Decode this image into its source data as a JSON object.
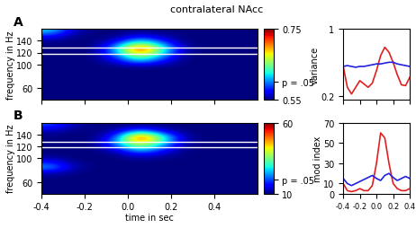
{
  "title": "contralateral NAcc",
  "chart_data": [
    {
      "type": "heatmap",
      "annotation": "A",
      "x_label": "time in sec",
      "y_label": "frequency in Hz",
      "x_edges": [
        -0.4,
        -0.3,
        -0.2,
        -0.1,
        0.0,
        0.1,
        0.2,
        0.3,
        0.4,
        0.5,
        0.6
      ],
      "y_edges": [
        40,
        50,
        60,
        70,
        80,
        90,
        100,
        110,
        120,
        130,
        140,
        150,
        160
      ],
      "cells": [
        [
          0.55,
          0.55,
          0.55,
          0.55,
          0.55,
          0.55,
          0.55,
          0.55,
          0.55,
          0.55
        ],
        [
          0.55,
          0.55,
          0.55,
          0.55,
          0.55,
          0.55,
          0.55,
          0.55,
          0.55,
          0.55
        ],
        [
          0.55,
          0.55,
          0.55,
          0.55,
          0.55,
          0.55,
          0.55,
          0.55,
          0.55,
          0.55
        ],
        [
          0.55,
          0.55,
          0.55,
          0.55,
          0.55,
          0.55,
          0.55,
          0.55,
          0.55,
          0.55
        ],
        [
          0.55,
          0.55,
          0.55,
          0.55,
          0.55,
          0.55,
          0.55,
          0.55,
          0.55,
          0.55
        ],
        [
          0.55,
          0.55,
          0.55,
          0.55,
          0.55,
          0.55,
          0.55,
          0.55,
          0.55,
          0.55
        ],
        [
          0.55,
          0.55,
          0.55,
          0.57,
          0.62,
          0.58,
          0.55,
          0.55,
          0.55,
          0.55
        ],
        [
          0.55,
          0.55,
          0.55,
          0.6,
          0.68,
          0.62,
          0.55,
          0.55,
          0.55,
          0.55
        ],
        [
          0.55,
          0.55,
          0.55,
          0.62,
          0.75,
          0.65,
          0.56,
          0.55,
          0.55,
          0.55
        ],
        [
          0.55,
          0.55,
          0.55,
          0.58,
          0.65,
          0.6,
          0.55,
          0.55,
          0.55,
          0.55
        ],
        [
          0.57,
          0.55,
          0.55,
          0.55,
          0.58,
          0.56,
          0.55,
          0.55,
          0.55,
          0.55
        ],
        [
          0.62,
          0.56,
          0.55,
          0.55,
          0.55,
          0.55,
          0.55,
          0.55,
          0.55,
          0.55
        ]
      ],
      "band": [
        118,
        128
      ],
      "xlim": [
        -0.4,
        0.6
      ],
      "xticks": [
        -0.4,
        -0.2,
        0.0,
        0.2,
        0.4
      ],
      "ylim": [
        40,
        160
      ],
      "yticks": [
        60,
        100,
        120,
        140
      ],
      "color_range": [
        0.55,
        0.75
      ],
      "color_ticks": [
        0.55,
        {
          "value": 0.6,
          "label": "p = .05"
        },
        0.75
      ],
      "tick_labels": "y"
    },
    {
      "type": "heatmap",
      "annotation": "B",
      "x_label": "time in sec",
      "y_label": "frequency in Hz",
      "x_edges": [
        -0.4,
        -0.3,
        -0.2,
        -0.1,
        0.0,
        0.1,
        0.2,
        0.3,
        0.4,
        0.5,
        0.6
      ],
      "y_edges": [
        40,
        50,
        60,
        70,
        80,
        90,
        100,
        110,
        120,
        130,
        140,
        150,
        160
      ],
      "cells": [
        [
          10,
          10,
          10,
          10,
          10,
          10,
          10,
          10,
          10,
          10
        ],
        [
          10,
          10,
          10,
          10,
          10,
          10,
          10,
          10,
          10,
          10
        ],
        [
          10,
          10,
          10,
          10,
          10,
          10,
          10,
          10,
          10,
          10
        ],
        [
          12,
          10,
          10,
          10,
          10,
          10,
          10,
          10,
          10,
          10
        ],
        [
          25,
          12,
          10,
          10,
          10,
          10,
          10,
          10,
          10,
          10
        ],
        [
          15,
          10,
          10,
          10,
          10,
          10,
          10,
          10,
          10,
          10
        ],
        [
          10,
          10,
          10,
          10,
          15,
          12,
          10,
          10,
          10,
          10
        ],
        [
          10,
          10,
          10,
          15,
          30,
          20,
          10,
          10,
          10,
          10
        ],
        [
          10,
          10,
          10,
          25,
          45,
          30,
          12,
          10,
          10,
          10
        ],
        [
          10,
          10,
          10,
          20,
          60,
          35,
          12,
          10,
          10,
          10
        ],
        [
          12,
          10,
          10,
          12,
          25,
          15,
          10,
          10,
          10,
          10
        ],
        [
          20,
          12,
          10,
          10,
          10,
          10,
          10,
          10,
          10,
          10
        ]
      ],
      "band": [
        118,
        128
      ],
      "xlim": [
        -0.4,
        0.6
      ],
      "xticks": [
        -0.4,
        -0.2,
        0.0,
        0.2,
        0.4
      ],
      "ylim": [
        40,
        160
      ],
      "yticks": [
        60,
        100,
        120,
        140
      ],
      "color_range": [
        10,
        60
      ],
      "color_ticks": [
        10,
        {
          "value": 20,
          "label": "p = .05"
        },
        60
      ]
    },
    {
      "type": "line",
      "y_label": "variance",
      "x": [
        -0.4,
        -0.35,
        -0.3,
        -0.25,
        -0.2,
        -0.15,
        -0.1,
        -0.05,
        0.0,
        0.05,
        0.1,
        0.15,
        0.2,
        0.25,
        0.3,
        0.35,
        0.4
      ],
      "series": [
        {
          "color": "#e02020",
          "values": [
            0.55,
            0.3,
            0.22,
            0.3,
            0.38,
            0.34,
            0.3,
            0.35,
            0.5,
            0.68,
            0.78,
            0.72,
            0.6,
            0.45,
            0.33,
            0.32,
            0.42
          ]
        },
        {
          "color": "#2020e0",
          "values": [
            0.55,
            0.56,
            0.55,
            0.54,
            0.55,
            0.55,
            0.56,
            0.57,
            0.58,
            0.58,
            0.59,
            0.6,
            0.6,
            0.58,
            0.57,
            0.56,
            0.55
          ]
        }
      ],
      "xlim": [
        -0.4,
        0.4
      ],
      "xticks": [
        -0.4,
        -0.2,
        0.0,
        0.2,
        0.4
      ],
      "ylim": [
        0.15,
        1
      ],
      "yticks": [
        0.2,
        1
      ],
      "tick_labels": "y"
    },
    {
      "type": "line",
      "y_label": "mod index",
      "x": [
        -0.4,
        -0.35,
        -0.3,
        -0.25,
        -0.2,
        -0.15,
        -0.1,
        -0.05,
        0.0,
        0.05,
        0.1,
        0.15,
        0.2,
        0.25,
        0.3,
        0.35,
        0.4
      ],
      "series": [
        {
          "color": "#e02020",
          "values": [
            10,
            3,
            2,
            3,
            5,
            3,
            3,
            8,
            30,
            60,
            55,
            30,
            10,
            5,
            3,
            3,
            5
          ]
        },
        {
          "color": "#2020e0",
          "values": [
            15,
            10,
            8,
            10,
            12,
            14,
            16,
            18,
            15,
            13,
            18,
            20,
            16,
            13,
            15,
            17,
            15
          ]
        }
      ],
      "xlim": [
        -0.4,
        0.4
      ],
      "xticks": [
        -0.4,
        -0.2,
        0.0,
        0.2,
        0.4
      ],
      "ylim": [
        0,
        70
      ],
      "yticks": [
        0,
        10,
        30,
        50,
        70
      ]
    }
  ]
}
